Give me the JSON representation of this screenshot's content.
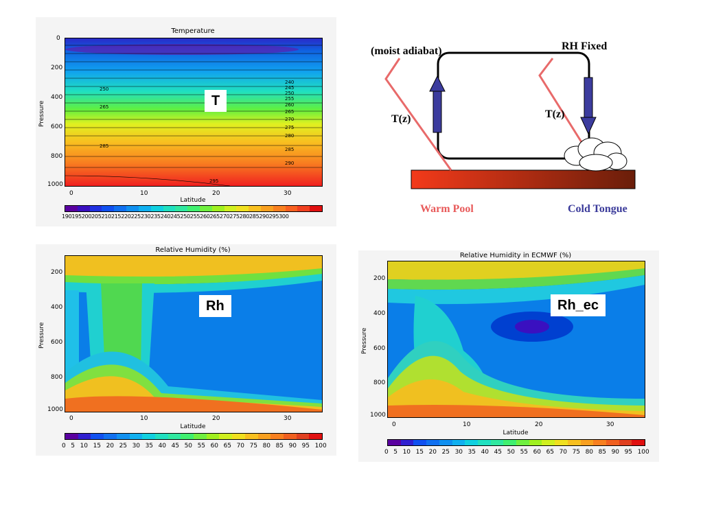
{
  "chart_data": [
    {
      "type": "heatmap",
      "title": "Temperature",
      "ylabel": "Pressure",
      "xlabel": "Latitude",
      "x_ticks": [
        0,
        10,
        20,
        30
      ],
      "y_ticks": [
        0,
        200,
        400,
        600,
        800,
        1000
      ],
      "tag": "T",
      "colorbar_labels": "190195200205210215220225230235240245250255260265270275280285290295300",
      "contour_labels": [
        "250",
        "265",
        "285",
        "240",
        "245",
        "250",
        "255",
        "260",
        "265",
        "270",
        "275",
        "280",
        "285",
        "290",
        "295"
      ]
    },
    {
      "type": "heatmap",
      "title": "Relative Humidity (%)",
      "ylabel": "Pressure",
      "xlabel": "Latitude",
      "x_ticks": [
        0,
        10,
        20,
        30
      ],
      "y_ticks": [
        200,
        400,
        600,
        800,
        1000
      ],
      "tag": "Rh",
      "colorbar_labels": [
        "0",
        "5",
        "10",
        "15",
        "20",
        "25",
        "30",
        "35",
        "40",
        "45",
        "50",
        "55",
        "60",
        "65",
        "70",
        "75",
        "80",
        "85",
        "90",
        "95",
        "100"
      ]
    },
    {
      "type": "heatmap",
      "title": "Relative Humidity in ECMWF (%)",
      "ylabel": "Pressure",
      "xlabel": "Latitude",
      "x_ticks": [
        0,
        10,
        20,
        30
      ],
      "y_ticks": [
        200,
        400,
        600,
        800,
        1000
      ],
      "tag": "Rh_ec",
      "colorbar_labels": [
        "0",
        "5",
        "10",
        "15",
        "20",
        "25",
        "30",
        "35",
        "40",
        "45",
        "50",
        "55",
        "60",
        "65",
        "70",
        "75",
        "80",
        "85",
        "90",
        "95",
        "100"
      ]
    }
  ],
  "schematic": {
    "moist": "(moist adiabat)",
    "rh": "RH Fixed",
    "tz1": "T(z)",
    "tz2": "T(z)",
    "warm": "Warm Pool",
    "cold": "Cold Tongue"
  },
  "colors": {
    "warm": "#e85a5a",
    "cold": "#3a3a9a",
    "arrow": "#3c3c9e"
  }
}
